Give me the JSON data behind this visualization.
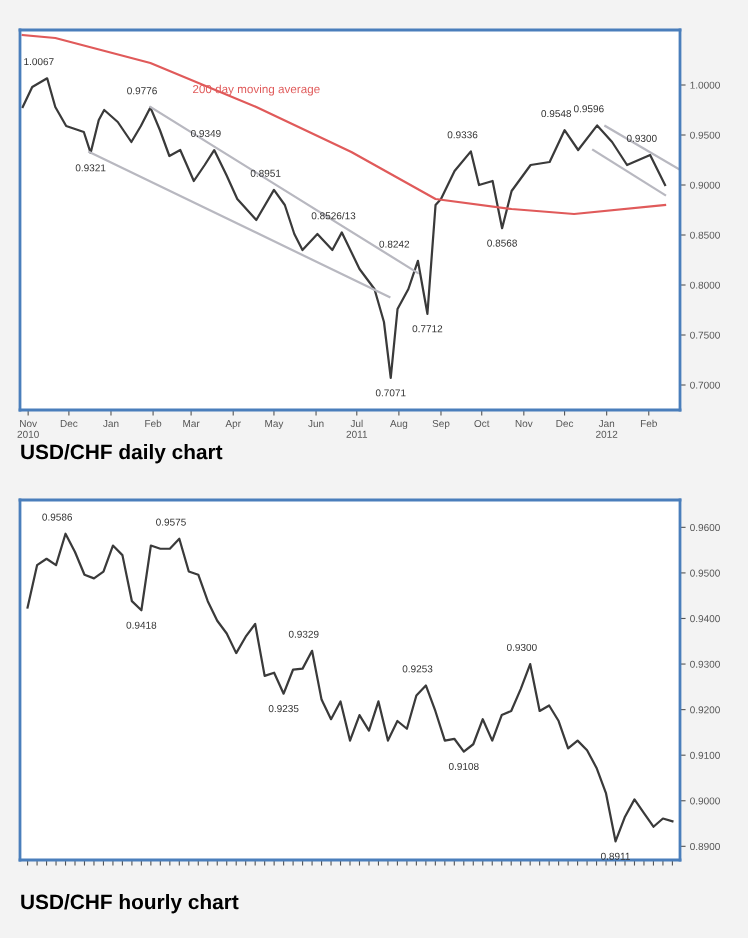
{
  "chart_data": [
    {
      "type": "line",
      "title": "USD/CHF daily chart",
      "xlim": [
        "2010-10-26",
        "2012-02-24"
      ],
      "ylim": [
        0.675,
        1.055
      ],
      "xticks": [
        {
          "value": "2010-11-01",
          "label": "Nov\n2010"
        },
        {
          "value": "2010-12-01",
          "label": "Dec"
        },
        {
          "value": "2011-01-01",
          "label": "Jan"
        },
        {
          "value": "2011-02-01",
          "label": "Feb"
        },
        {
          "value": "2011-03-01",
          "label": "Mar"
        },
        {
          "value": "2011-04-01",
          "label": "Apr"
        },
        {
          "value": "2011-05-01",
          "label": "May"
        },
        {
          "value": "2011-06-01",
          "label": "Jun"
        },
        {
          "value": "2011-07-01",
          "label": "Jul\n2011"
        },
        {
          "value": "2011-08-01",
          "label": "Aug"
        },
        {
          "value": "2011-09-01",
          "label": "Sep"
        },
        {
          "value": "2011-10-01",
          "label": "Oct"
        },
        {
          "value": "2011-11-01",
          "label": "Nov"
        },
        {
          "value": "2011-12-01",
          "label": "Dec"
        },
        {
          "value": "2012-01-01",
          "label": "Jan\n2012"
        },
        {
          "value": "2012-02-01",
          "label": "Feb"
        }
      ],
      "yticks": [
        {
          "value": 0.7,
          "label": "0.7000"
        },
        {
          "value": 0.75,
          "label": "0.7500"
        },
        {
          "value": 0.8,
          "label": "0.8000"
        },
        {
          "value": 0.85,
          "label": "0.8500"
        },
        {
          "value": 0.9,
          "label": "0.9000"
        },
        {
          "value": 0.95,
          "label": "0.9500"
        },
        {
          "value": 1.0,
          "label": "1.0000"
        }
      ],
      "series": [
        {
          "color": "#3a3a3a",
          "x": [
            "2010-10-28",
            "2010-11-04",
            "2010-11-15",
            "2010-11-21",
            "2010-11-29",
            "2010-12-12",
            "2010-12-17",
            "2010-12-23",
            "2010-12-27",
            "2011-01-06",
            "2011-01-16",
            "2011-01-23",
            "2011-01-30",
            "2011-02-06",
            "2011-02-13",
            "2011-02-21",
            "2011-03-03",
            "2011-03-11",
            "2011-03-18",
            "2011-03-27",
            "2011-04-04",
            "2011-04-18",
            "2011-05-01",
            "2011-05-09",
            "2011-05-16",
            "2011-05-22",
            "2011-06-02",
            "2011-06-13",
            "2011-06-20",
            "2011-07-03",
            "2011-07-14",
            "2011-07-21",
            "2011-07-26",
            "2011-07-31",
            "2011-08-08",
            "2011-08-15",
            "2011-08-22",
            "2011-08-28",
            "2011-09-01",
            "2011-09-11",
            "2011-09-23",
            "2011-09-29",
            "2011-10-09",
            "2011-10-16",
            "2011-10-23",
            "2011-11-06",
            "2011-11-20",
            "2011-12-01",
            "2011-12-11",
            "2011-12-25",
            "2012-01-05",
            "2012-01-16",
            "2012-02-02",
            "2012-02-13"
          ],
          "values": [
            0.978,
            0.998,
            1.0067,
            0.978,
            0.959,
            0.953,
            0.9321,
            0.965,
            0.975,
            0.963,
            0.943,
            0.959,
            0.9776,
            0.955,
            0.929,
            0.935,
            0.904,
            0.92,
            0.9349,
            0.91,
            0.886,
            0.865,
            0.8951,
            0.88,
            0.851,
            0.835,
            0.851,
            0.835,
            0.8526,
            0.816,
            0.796,
            0.763,
            0.7071,
            0.776,
            0.796,
            0.8242,
            0.7712,
            0.88,
            0.886,
            0.914,
            0.9336,
            0.9,
            0.904,
            0.8568,
            0.894,
            0.92,
            0.923,
            0.9548,
            0.935,
            0.9596,
            0.943,
            0.92,
            0.93,
            0.9
          ]
        },
        {
          "name": "200 day moving average",
          "color": "#e05a5a",
          "x": [
            "2010-10-28",
            "2010-11-21",
            "2011-01-30",
            "2011-04-18",
            "2011-06-27",
            "2011-08-28",
            "2011-10-23",
            "2011-12-08",
            "2012-02-13"
          ],
          "values": [
            1.05,
            1.047,
            1.022,
            0.978,
            0.933,
            0.886,
            0.876,
            0.871,
            0.88
          ]
        },
        {
          "color": "#b8b8c0",
          "x": [
            "2010-12-16",
            "2011-07-25"
          ],
          "values": [
            0.933,
            0.788
          ]
        },
        {
          "color": "#b8b8c0",
          "x": [
            "2011-01-30",
            "2011-08-15"
          ],
          "values": [
            0.978,
            0.812
          ]
        },
        {
          "color": "#b8b8c0",
          "x": [
            "2011-12-31",
            "2012-02-23"
          ],
          "values": [
            0.959,
            0.916
          ]
        },
        {
          "color": "#b8b8c0",
          "x": [
            "2011-12-22",
            "2012-02-13"
          ],
          "values": [
            0.935,
            0.89
          ]
        }
      ],
      "annotations": [
        {
          "text": "1.0067",
          "x": "2010-11-15",
          "y": 1.0067
        },
        {
          "text": "0.9321",
          "x": "2010-12-17",
          "y": 0.9321
        },
        {
          "text": "0.9776",
          "x": "2011-01-30",
          "y": 0.9776
        },
        {
          "text": "0.9349",
          "x": "2011-03-18",
          "y": 0.9349
        },
        {
          "text": "0.8951",
          "x": "2011-05-01",
          "y": 0.8951
        },
        {
          "text": "0.8526/13",
          "x": "2011-06-20",
          "y": 0.8526
        },
        {
          "text": "0.7071",
          "x": "2011-07-26",
          "y": 0.7071
        },
        {
          "text": "0.8242",
          "x": "2011-08-15",
          "y": 0.8242
        },
        {
          "text": "0.7712",
          "x": "2011-08-22",
          "y": 0.7712
        },
        {
          "text": "0.9336",
          "x": "2011-09-23",
          "y": 0.9336
        },
        {
          "text": "0.8568",
          "x": "2011-10-16",
          "y": 0.8568
        },
        {
          "text": "0.9548",
          "x": "2011-12-01",
          "y": 0.9548
        },
        {
          "text": "0.9596",
          "x": "2011-12-25",
          "y": 0.9596
        },
        {
          "text": "0.9300",
          "x": "2012-02-02",
          "y": 0.93
        }
      ]
    },
    {
      "type": "line",
      "title": "USD/CHF hourly chart",
      "ylim": [
        0.887,
        0.966
      ],
      "categories": [
        null,
        null,
        null,
        null,
        null,
        null,
        null,
        null,
        null,
        null,
        null,
        null,
        null,
        null,
        null,
        null,
        null,
        null,
        null,
        null,
        null,
        null,
        null,
        null,
        null,
        null,
        null,
        null,
        null,
        null,
        null,
        null,
        null,
        null,
        null,
        null,
        null,
        null,
        null,
        null,
        null,
        null,
        null,
        null,
        null,
        null,
        null,
        null,
        null,
        null,
        null,
        null,
        null,
        null,
        null,
        null,
        null,
        null,
        null,
        null,
        null,
        null,
        null,
        null,
        null,
        null,
        null,
        null,
        null
      ],
      "yticks": [
        {
          "value": 0.89,
          "label": "0.8900"
        },
        {
          "value": 0.9,
          "label": "0.9000"
        },
        {
          "value": 0.91,
          "label": "0.9100"
        },
        {
          "value": 0.92,
          "label": "0.9200"
        },
        {
          "value": 0.93,
          "label": "0.9300"
        },
        {
          "value": 0.94,
          "label": "0.9400"
        },
        {
          "value": 0.95,
          "label": "0.9500"
        },
        {
          "value": 0.96,
          "label": "0.9600"
        }
      ],
      "series": [
        {
          "color": "#3a3a3a",
          "values": [
            0.9424,
            0.9517,
            0.9531,
            0.9517,
            0.9586,
            0.9546,
            0.9496,
            0.9488,
            0.9503,
            0.956,
            0.9539,
            0.9438,
            0.9418,
            0.956,
            0.9553,
            0.9553,
            0.9575,
            0.9503,
            0.9496,
            0.9438,
            0.9395,
            0.9367,
            0.9324,
            0.936,
            0.9388,
            0.9274,
            0.9281,
            0.9235,
            0.9288,
            0.929,
            0.9329,
            0.9222,
            0.9179,
            0.9218,
            0.9132,
            0.9188,
            0.9154,
            0.9218,
            0.9132,
            0.9175,
            0.9158,
            0.9231,
            0.9253,
            0.9197,
            0.9132,
            0.9136,
            0.9108,
            0.9124,
            0.9179,
            0.9132,
            0.9188,
            0.9197,
            0.9245,
            0.93,
            0.9197,
            0.9209,
            0.9175,
            0.9115,
            0.9132,
            0.9111,
            0.9072,
            0.9016,
            0.8911,
            0.8965,
            0.9003,
            0.8973,
            0.8943,
            0.8961,
            0.8955
          ]
        }
      ],
      "annotations": [
        {
          "text": "0.9586",
          "y": 0.9586
        },
        {
          "text": "0.9418",
          "y": 0.9418
        },
        {
          "text": "0.9575",
          "y": 0.9575
        },
        {
          "text": "0.9329",
          "y": 0.9329
        },
        {
          "text": "0.9235",
          "y": 0.9235
        },
        {
          "text": "0.9253",
          "y": 0.9253
        },
        {
          "text": "0.9108",
          "y": 0.9108
        },
        {
          "text": "0.9300",
          "y": 0.93
        },
        {
          "text": "0.8911",
          "y": 0.8911
        }
      ]
    }
  ]
}
